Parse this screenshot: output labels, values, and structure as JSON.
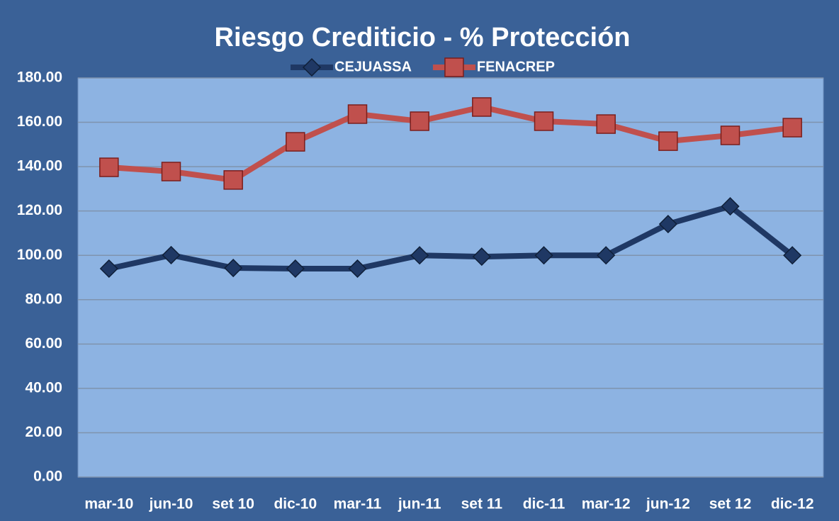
{
  "chart_data": {
    "type": "line",
    "title": "Riesgo Crediticio - % Protección",
    "categories": [
      "mar-10",
      "jun-10",
      "set 10",
      "dic-10",
      "mar-11",
      "jun-11",
      "set 11",
      "dic-11",
      "mar-12",
      "jun-12",
      "set 12",
      "dic-12"
    ],
    "series": [
      {
        "name": "CEJUASSA",
        "color": "#1f3864",
        "marker": "diamond",
        "values": [
          94.0,
          100.1,
          94.3,
          94.0,
          94.0,
          100.0,
          99.4,
          100.0,
          100.0,
          114.1,
          122.1,
          100.0
        ]
      },
      {
        "name": "FENACREP",
        "color": "#c0504d",
        "marker": "square",
        "values": [
          139.7,
          137.8,
          134.0,
          151.2,
          163.7,
          160.5,
          166.9,
          160.5,
          159.2,
          151.5,
          154.1,
          157.6
        ]
      }
    ],
    "ylim": [
      0,
      180
    ],
    "yticks": [
      {
        "value": 0,
        "label": "0.00"
      },
      {
        "value": 20,
        "label": "20.00"
      },
      {
        "value": 40,
        "label": "40.00"
      },
      {
        "value": 60,
        "label": "60.00"
      },
      {
        "value": 80,
        "label": "80.00"
      },
      {
        "value": 100,
        "label": "100.00"
      },
      {
        "value": 120,
        "label": "120.00"
      },
      {
        "value": 140,
        "label": "140.00"
      },
      {
        "value": 160,
        "label": "160.00"
      },
      {
        "value": 180,
        "label": "180.00"
      }
    ],
    "grid": true,
    "legend": "top"
  }
}
